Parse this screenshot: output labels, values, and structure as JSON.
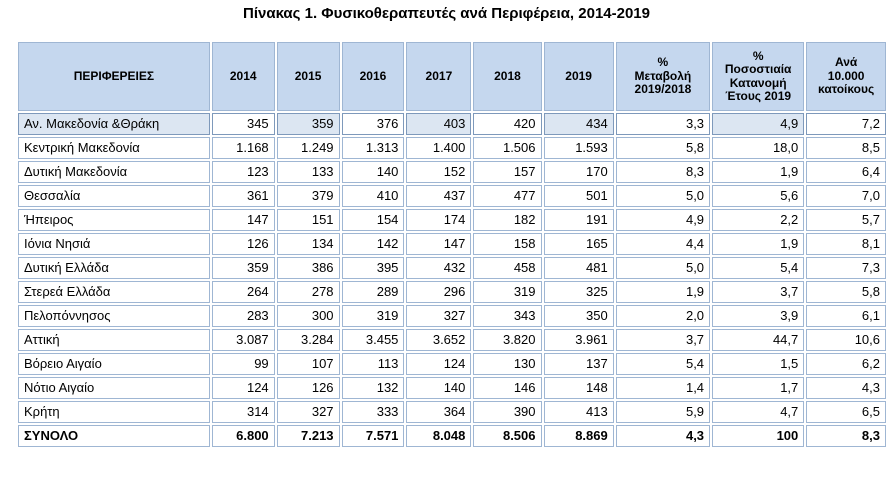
{
  "title": "Πίνακας 1. Φυσικοθεραπευτές ανά Περιφέρεια, 2014-2019",
  "headers": {
    "region": "ΠΕΡΙΦΕΡΕΙΕΣ",
    "y2014": "2014",
    "y2015": "2015",
    "y2016": "2016",
    "y2017": "2017",
    "y2018": "2018",
    "y2019": "2019",
    "change_l1": "%",
    "change_l2": "Μεταβολή",
    "change_l3": "2019/2018",
    "share_l1": "%",
    "share_l2": "Ποσοστιαία",
    "share_l3": "Κατανομή",
    "share_l4": "Έτους 2019",
    "per10k_l1": "Ανά",
    "per10k_l2": "10.000",
    "per10k_l3": "κατοίκους"
  },
  "rows": [
    {
      "region": "Αν. Μακεδονία &Θράκη",
      "y2014": "345",
      "y2015": "359",
      "y2016": "376",
      "y2017": "403",
      "y2018": "420",
      "y2019": "434",
      "change": "3,3",
      "share": "4,9",
      "per10k": "7,2"
    },
    {
      "region": "Κεντρική Μακεδονία",
      "y2014": "1.168",
      "y2015": "1.249",
      "y2016": "1.313",
      "y2017": "1.400",
      "y2018": "1.506",
      "y2019": "1.593",
      "change": "5,8",
      "share": "18,0",
      "per10k": "8,5"
    },
    {
      "region": "Δυτική Μακεδονία",
      "y2014": "123",
      "y2015": "133",
      "y2016": "140",
      "y2017": "152",
      "y2018": "157",
      "y2019": "170",
      "change": "8,3",
      "share": "1,9",
      "per10k": "6,4"
    },
    {
      "region": "Θεσσαλία",
      "y2014": "361",
      "y2015": "379",
      "y2016": "410",
      "y2017": "437",
      "y2018": "477",
      "y2019": "501",
      "change": "5,0",
      "share": "5,6",
      "per10k": "7,0"
    },
    {
      "region": "Ήπειρος",
      "y2014": "147",
      "y2015": "151",
      "y2016": "154",
      "y2017": "174",
      "y2018": "182",
      "y2019": "191",
      "change": "4,9",
      "share": "2,2",
      "per10k": "5,7"
    },
    {
      "region": "Ιόνια Νησιά",
      "y2014": "126",
      "y2015": "134",
      "y2016": "142",
      "y2017": "147",
      "y2018": "158",
      "y2019": "165",
      "change": "4,4",
      "share": "1,9",
      "per10k": "8,1"
    },
    {
      "region": "Δυτική Ελλάδα",
      "y2014": "359",
      "y2015": "386",
      "y2016": "395",
      "y2017": "432",
      "y2018": "458",
      "y2019": "481",
      "change": "5,0",
      "share": "5,4",
      "per10k": "7,3"
    },
    {
      "region": "Στερεά Ελλάδα",
      "y2014": "264",
      "y2015": "278",
      "y2016": "289",
      "y2017": "296",
      "y2018": "319",
      "y2019": "325",
      "change": "1,9",
      "share": "3,7",
      "per10k": "5,8"
    },
    {
      "region": "Πελοπόννησος",
      "y2014": "283",
      "y2015": "300",
      "y2016": "319",
      "y2017": "327",
      "y2018": "343",
      "y2019": "350",
      "change": "2,0",
      "share": "3,9",
      "per10k": "6,1"
    },
    {
      "region": "Αττική",
      "y2014": "3.087",
      "y2015": "3.284",
      "y2016": "3.455",
      "y2017": "3.652",
      "y2018": "3.820",
      "y2019": "3.961",
      "change": "3,7",
      "share": "44,7",
      "per10k": "10,6"
    },
    {
      "region": "Βόρειο Αιγαίο",
      "y2014": "99",
      "y2015": "107",
      "y2016": "113",
      "y2017": "124",
      "y2018": "130",
      "y2019": "137",
      "change": "5,4",
      "share": "1,5",
      "per10k": "6,2"
    },
    {
      "region": "Νότιο Αιγαίο",
      "y2014": "124",
      "y2015": "126",
      "y2016": "132",
      "y2017": "140",
      "y2018": "146",
      "y2019": "148",
      "change": "1,4",
      "share": "1,7",
      "per10k": "4,3"
    },
    {
      "region": "Κρήτη",
      "y2014": "314",
      "y2015": "327",
      "y2016": "333",
      "y2017": "364",
      "y2018": "390",
      "y2019": "413",
      "change": "5,9",
      "share": "4,7",
      "per10k": "6,5"
    }
  ],
  "total": {
    "region": "ΣΥΝΟΛΟ",
    "y2014": "6.800",
    "y2015": "7.213",
    "y2016": "7.571",
    "y2017": "8.048",
    "y2018": "8.506",
    "y2019": "8.869",
    "change": "4,3",
    "share": "100",
    "per10k": "8,3"
  },
  "colors": {
    "header_fill": "#c5d7ee",
    "cell_border": "#9fb6d3",
    "highlight_fill": "#dce6f2"
  }
}
